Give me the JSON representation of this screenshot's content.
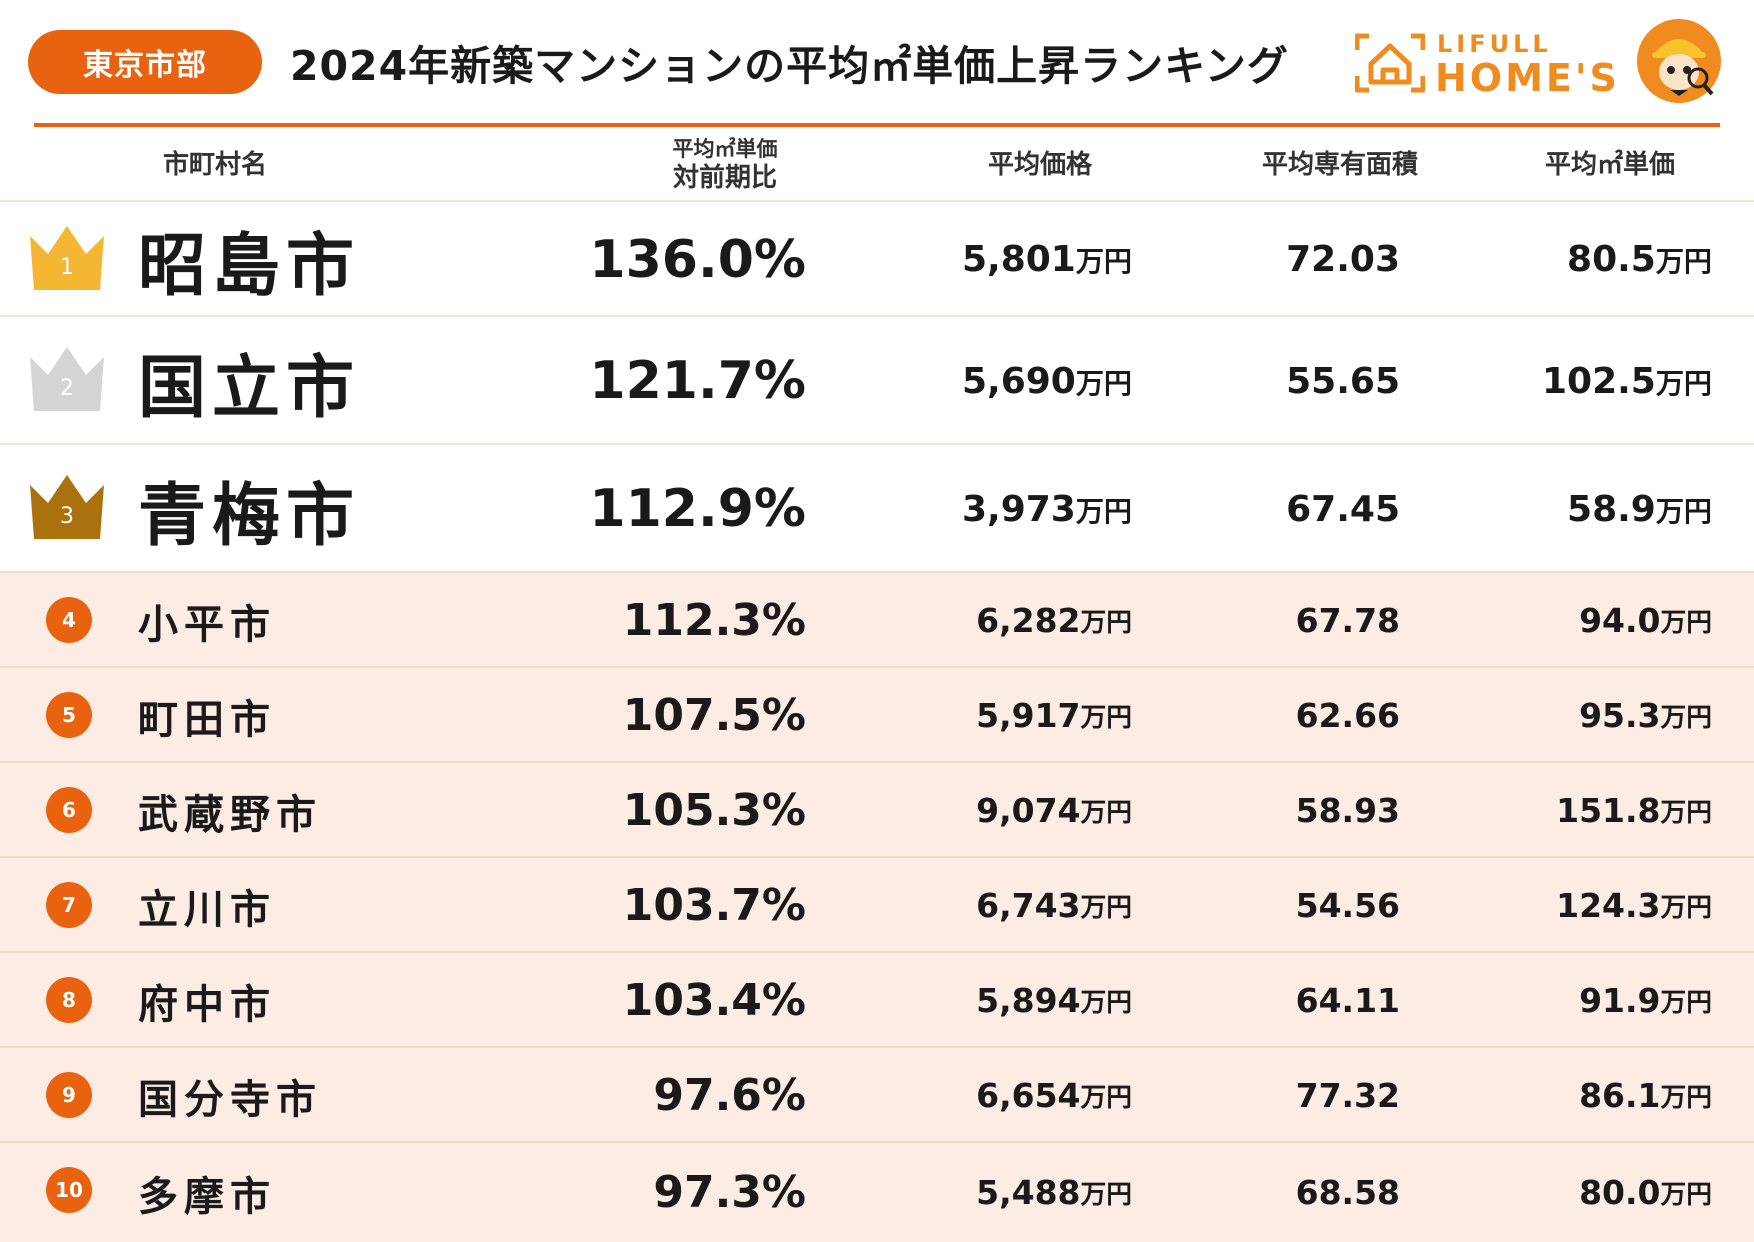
{
  "header": {
    "region": "東京市部",
    "title": "2024年新築マンションの平均㎡単価上昇ランキング",
    "logo_small": "LIFULL",
    "logo_big": "HOME'S"
  },
  "columns": {
    "city": "市町村名",
    "ratio_line1": "平均㎡単価",
    "ratio_line2": "対前期比",
    "price": "平均価格",
    "area": "平均専有面積",
    "unit_price": "平均㎡単価"
  },
  "colors": {
    "accent": "#e8620f",
    "gold": "#f5b733",
    "silver": "#d4d4d4",
    "bronze": "#a9720f",
    "row_fill": "#fcece3"
  },
  "unit_suffix": "万円",
  "chart_data": {
    "type": "table",
    "title": "2024年新築マンションの平均㎡単価上昇ランキング",
    "columns": [
      "市町村名",
      "平均㎡単価 対前期比",
      "平均価格",
      "平均専有面積",
      "平均㎡単価"
    ],
    "rows": [
      {
        "rank": "1",
        "city": "昭島市",
        "ratio": "136.0%",
        "price": "5,801",
        "area": "72.03",
        "unit_price": "80.5"
      },
      {
        "rank": "2",
        "city": "国立市",
        "ratio": "121.7%",
        "price": "5,690",
        "area": "55.65",
        "unit_price": "102.5"
      },
      {
        "rank": "3",
        "city": "青梅市",
        "ratio": "112.9%",
        "price": "3,973",
        "area": "67.45",
        "unit_price": "58.9"
      },
      {
        "rank": "4",
        "city": "小平市",
        "ratio": "112.3%",
        "price": "6,282",
        "area": "67.78",
        "unit_price": "94.0"
      },
      {
        "rank": "5",
        "city": "町田市",
        "ratio": "107.5%",
        "price": "5,917",
        "area": "62.66",
        "unit_price": "95.3"
      },
      {
        "rank": "6",
        "city": "武蔵野市",
        "ratio": "105.3%",
        "price": "9,074",
        "area": "58.93",
        "unit_price": "151.8"
      },
      {
        "rank": "7",
        "city": "立川市",
        "ratio": "103.7%",
        "price": "6,743",
        "area": "54.56",
        "unit_price": "124.3"
      },
      {
        "rank": "8",
        "city": "府中市",
        "ratio": "103.4%",
        "price": "5,894",
        "area": "64.11",
        "unit_price": "91.9"
      },
      {
        "rank": "9",
        "city": "国分寺市",
        "ratio": "97.6%",
        "price": "6,654",
        "area": "77.32",
        "unit_price": "86.1"
      },
      {
        "rank": "10",
        "city": "多摩市",
        "ratio": "97.3%",
        "price": "5,488",
        "area": "68.58",
        "unit_price": "80.0"
      }
    ]
  }
}
